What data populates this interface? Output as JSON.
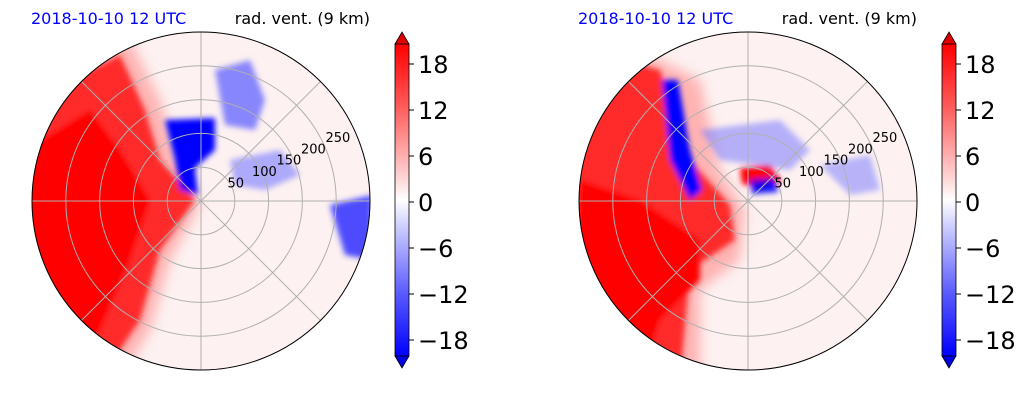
{
  "chart_data": [
    {
      "type": "heatmap",
      "projection": "polar",
      "date_label": "2018-10-10 12 UTC",
      "title": "rad. vent. (9 km)",
      "radial_ticks": [
        50,
        100,
        150,
        200,
        250
      ],
      "colorbar": {
        "ticks": [
          18,
          12,
          6,
          0,
          -6,
          -12,
          -18
        ],
        "tick_labels": [
          "18",
          "12",
          "6",
          "0",
          "−6",
          "−12",
          "−18"
        ],
        "range": [
          -20,
          20
        ],
        "extend": "both",
        "colormap": "bwr",
        "colors": {
          "max": "#ff0000",
          "zero": "#ffffff",
          "min": "#0000ff"
        }
      },
      "features": [
        {
          "kind": "positive",
          "description": "strong outbound band on western half",
          "value": 18
        },
        {
          "kind": "negative",
          "description": "inbound cluster just north-west of center",
          "value": -18
        },
        {
          "kind": "negative",
          "description": "patches to north-east and east",
          "value": -12
        }
      ]
    },
    {
      "type": "heatmap",
      "projection": "polar",
      "date_label": "2018-10-10 12 UTC",
      "title": "rad. vent. (9 km)",
      "radial_ticks": [
        50,
        100,
        150,
        200,
        250
      ],
      "colorbar": {
        "ticks": [
          18,
          12,
          6,
          0,
          -6,
          -12,
          -18
        ],
        "tick_labels": [
          "18",
          "12",
          "6",
          "0",
          "−6",
          "−12",
          "−18"
        ],
        "range": [
          -20,
          20
        ],
        "extend": "both",
        "colormap": "bwr",
        "colors": {
          "max": "#ff0000",
          "zero": "#ffffff",
          "min": "#0000ff"
        }
      },
      "features": [
        {
          "kind": "positive",
          "description": "outbound band on south-western half",
          "value": 18
        },
        {
          "kind": "negative",
          "description": "inbound streak north-west of center",
          "value": -18
        },
        {
          "kind": "mixed",
          "description": "small dipole near center",
          "value": 12
        }
      ]
    }
  ]
}
